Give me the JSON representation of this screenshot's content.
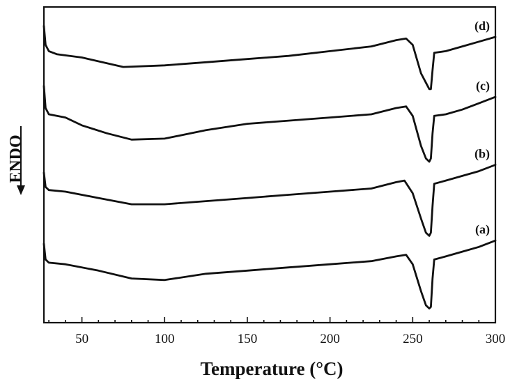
{
  "chart_data": {
    "type": "line",
    "title": "",
    "xlabel": "Temperature (°C)",
    "ylabel": "ENDO",
    "xlim": [
      27,
      300
    ],
    "ylim": [
      0,
      100
    ],
    "xticks": [
      50,
      100,
      150,
      200,
      250,
      300
    ],
    "grid": false,
    "legend": "none",
    "series": [
      {
        "name": "(d)",
        "points": [
          [
            27,
            94
          ],
          [
            28,
            88
          ],
          [
            30,
            86
          ],
          [
            35,
            85
          ],
          [
            50,
            84
          ],
          [
            75,
            81
          ],
          [
            100,
            81.5
          ],
          [
            125,
            82.5
          ],
          [
            150,
            83.5
          ],
          [
            175,
            84.5
          ],
          [
            200,
            86
          ],
          [
            225,
            87.5
          ],
          [
            240,
            89.5
          ],
          [
            246,
            90
          ],
          [
            250,
            88
          ],
          [
            255,
            79
          ],
          [
            258,
            76
          ],
          [
            260,
            74
          ],
          [
            261,
            74
          ],
          [
            262,
            80
          ],
          [
            263,
            85.5
          ],
          [
            270,
            86
          ],
          [
            280,
            87.5
          ],
          [
            290,
            89
          ],
          [
            300,
            90.5
          ]
        ]
      },
      {
        "name": "(c)",
        "points": [
          [
            27,
            75
          ],
          [
            28,
            68
          ],
          [
            30,
            66
          ],
          [
            40,
            65
          ],
          [
            50,
            62.5
          ],
          [
            65,
            60
          ],
          [
            80,
            58
          ],
          [
            100,
            58.3
          ],
          [
            125,
            61
          ],
          [
            150,
            63
          ],
          [
            175,
            64
          ],
          [
            200,
            65
          ],
          [
            225,
            66
          ],
          [
            240,
            68
          ],
          [
            246,
            68.5
          ],
          [
            250,
            65.5
          ],
          [
            255,
            56
          ],
          [
            258,
            52
          ],
          [
            260,
            51
          ],
          [
            261,
            52
          ],
          [
            262,
            60
          ],
          [
            263,
            65.5
          ],
          [
            270,
            66
          ],
          [
            280,
            67.5
          ],
          [
            290,
            69.5
          ],
          [
            300,
            71.5
          ]
        ]
      },
      {
        "name": "(b)",
        "points": [
          [
            27,
            47.5
          ],
          [
            28,
            43
          ],
          [
            30,
            42
          ],
          [
            40,
            41.5
          ],
          [
            60,
            39.5
          ],
          [
            80,
            37.5
          ],
          [
            100,
            37.5
          ],
          [
            125,
            38.5
          ],
          [
            150,
            39.5
          ],
          [
            175,
            40.5
          ],
          [
            200,
            41.5
          ],
          [
            225,
            42.5
          ],
          [
            240,
            44.5
          ],
          [
            245,
            45
          ],
          [
            250,
            41
          ],
          [
            255,
            33
          ],
          [
            258,
            28.5
          ],
          [
            260,
            27.5
          ],
          [
            261,
            28.5
          ],
          [
            262,
            37
          ],
          [
            263,
            44
          ],
          [
            270,
            45
          ],
          [
            280,
            46.5
          ],
          [
            290,
            48
          ],
          [
            300,
            50
          ]
        ]
      },
      {
        "name": "(a)",
        "points": [
          [
            27,
            25
          ],
          [
            28,
            20
          ],
          [
            30,
            19
          ],
          [
            40,
            18.5
          ],
          [
            60,
            16.5
          ],
          [
            80,
            14
          ],
          [
            100,
            13.5
          ],
          [
            125,
            15.5
          ],
          [
            150,
            16.5
          ],
          [
            175,
            17.5
          ],
          [
            200,
            18.5
          ],
          [
            225,
            19.5
          ],
          [
            240,
            21
          ],
          [
            246,
            21.5
          ],
          [
            250,
            18.5
          ],
          [
            255,
            10
          ],
          [
            258,
            5.5
          ],
          [
            260,
            4.5
          ],
          [
            261,
            5
          ],
          [
            262,
            14
          ],
          [
            263,
            20
          ],
          [
            270,
            21
          ],
          [
            280,
            22.5
          ],
          [
            290,
            24
          ],
          [
            300,
            26
          ]
        ]
      }
    ]
  }
}
